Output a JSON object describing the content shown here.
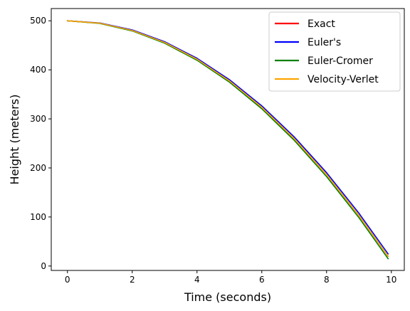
{
  "chart_data": {
    "type": "line",
    "title": "",
    "xlabel": "Time (seconds)",
    "ylabel": "Height (meters)",
    "xlim": [
      -0.5,
      10.4
    ],
    "ylim": [
      -9,
      525
    ],
    "xticks": [
      0,
      2,
      4,
      6,
      8,
      10
    ],
    "yticks": [
      0,
      100,
      200,
      300,
      400,
      500
    ],
    "grid": false,
    "legend_position": "top-right",
    "series": [
      {
        "name": "Exact",
        "color": "#ff0000",
        "x": [
          0,
          1,
          2,
          3,
          4,
          5,
          6,
          7,
          8,
          9,
          9.9
        ],
        "y": [
          500,
          495.1,
          480.4,
          455.9,
          421.6,
          377.5,
          323.6,
          259.9,
          186.4,
          103.1,
          19.8
        ]
      },
      {
        "name": "Euler's",
        "color": "#0000ff",
        "x": [
          0,
          1,
          2,
          3,
          4,
          5,
          6,
          7,
          8,
          9,
          9.9
        ],
        "y": [
          500,
          495.6,
          481.4,
          457.4,
          423.6,
          380.0,
          326.6,
          263.4,
          190.4,
          107.6,
          24.7
        ]
      },
      {
        "name": "Euler-Cromer",
        "color": "#008000",
        "x": [
          0,
          1,
          2,
          3,
          4,
          5,
          6,
          7,
          8,
          9,
          9.9
        ],
        "y": [
          500,
          494.6,
          479.4,
          454.4,
          419.6,
          375.0,
          320.6,
          256.4,
          182.4,
          98.6,
          14.9
        ]
      },
      {
        "name": "Velocity-Verlet",
        "color": "#ffa500",
        "x": [
          0,
          1,
          2,
          3,
          4,
          5,
          6,
          7,
          8,
          9,
          9.9
        ],
        "y": [
          500,
          495.1,
          480.4,
          455.9,
          421.6,
          377.5,
          323.6,
          259.9,
          186.4,
          103.1,
          19.8
        ]
      }
    ]
  }
}
